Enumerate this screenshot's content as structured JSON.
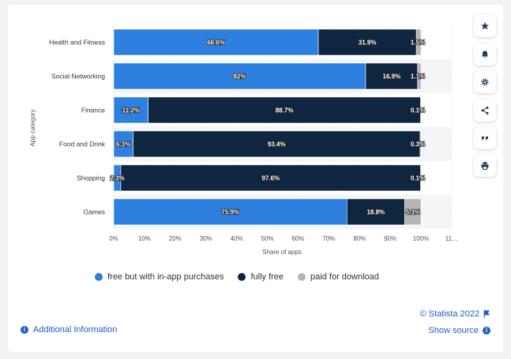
{
  "chart_data": {
    "type": "bar",
    "orientation": "horizontal",
    "stacked": true,
    "categories": [
      "Health and Fitness",
      "Social Networking",
      "Finance",
      "Food and Drink",
      "Shopping",
      "Games"
    ],
    "series": [
      {
        "name": "free but with in-app purchases",
        "color": "#2d7fe0",
        "values": [
          66.6,
          82,
          11.2,
          6.3,
          2.3,
          75.9
        ]
      },
      {
        "name": "fully free",
        "color": "#0f2640",
        "values": [
          31.9,
          16.9,
          88.7,
          93.4,
          97.6,
          18.8
        ]
      },
      {
        "name": "paid for download",
        "color": "#b5b5b5",
        "values": [
          1.5,
          1.1,
          0.1,
          0.3,
          0.1,
          5.3
        ]
      }
    ],
    "value_labels": [
      [
        "66.6%",
        "82%",
        "11.2%",
        "6.3%",
        "2.3%",
        "75.9%"
      ],
      [
        "31.9%",
        "16.9%",
        "88.7%",
        "93.4%",
        "97.6%",
        "18.8%"
      ],
      [
        "1.5%",
        "1.1%",
        "0.1%",
        "0.3%",
        "0.1%",
        "5.3%"
      ]
    ],
    "xticks": [
      "0%",
      "10%",
      "20%",
      "30%",
      "40%",
      "50%",
      "60%",
      "70%",
      "80%",
      "90%",
      "100%",
      "11…"
    ],
    "xlim": [
      0,
      110
    ],
    "xlabel": "Share of apps",
    "ylabel": "App category",
    "grid": true,
    "legend_position": "bottom"
  },
  "footer": {
    "additional_info": "Additional Information",
    "copyright": "© Statista 2022",
    "show_source": "Show source"
  },
  "sidebar_icons": [
    "star-icon",
    "bell-icon",
    "gear-icon",
    "share-icon",
    "quote-icon",
    "print-icon"
  ]
}
